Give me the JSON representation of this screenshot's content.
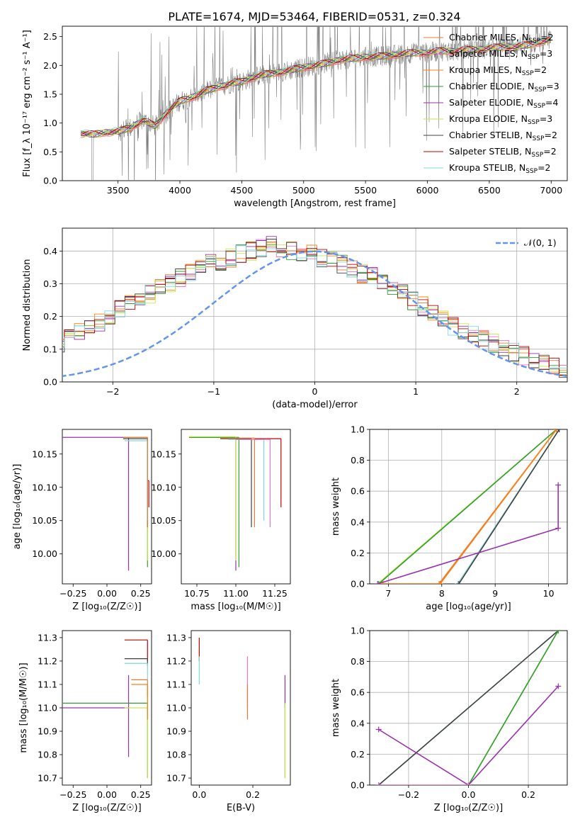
{
  "figure": {
    "title": "PLATE=1674, MJD=53464, FIBERID=0531, z=0.324"
  },
  "colors": {
    "data": "#808080",
    "grid": "#b0b0b0",
    "gaussian": "#6495ed"
  },
  "models": [
    {
      "name": "Chabrier MILES",
      "nssp": "2",
      "color": "#e8793a"
    },
    {
      "name": "Salpeter MILES",
      "nssp": "3",
      "color": "#e377c2"
    },
    {
      "name": "Kroupa MILES",
      "nssp": "2",
      "color": "#ff7f0e"
    },
    {
      "name": "Chabrier ELODIE",
      "nssp": "3",
      "color": "#2ca02c"
    },
    {
      "name": "Salpeter ELODIE",
      "nssp": "4",
      "color": "#9b30b0"
    },
    {
      "name": "Kroupa ELODIE",
      "nssp": "3",
      "color": "#c8e64a"
    },
    {
      "name": "Chabrier STELIB",
      "nssp": "2",
      "color": "#404040"
    },
    {
      "name": "Salpeter STELIB",
      "nssp": "2",
      "color": "#c00000"
    },
    {
      "name": "Kroupa STELIB",
      "nssp": "2",
      "color": "#7fd8dc"
    }
  ],
  "chart_data": [
    {
      "id": "spectrum",
      "type": "line",
      "xlabel": "wavelength [Angstrom, rest frame]",
      "ylabel": "Flux [f_λ 10⁻¹⁷ erg cm⁻² s⁻¹ A⁻¹]",
      "xlim": [
        3050,
        7130
      ],
      "ylim": [
        0,
        2.68
      ],
      "xticks": [
        3500,
        4000,
        4500,
        5000,
        5500,
        6000,
        6500,
        7000
      ],
      "yticks": [
        0.0,
        0.5,
        1.0,
        1.5,
        2.0,
        2.5
      ],
      "legend": "right, inside",
      "continuum": {
        "x": [
          3200,
          3300,
          3400,
          3500,
          3600,
          3700,
          3800,
          3900,
          4000,
          4100,
          4200,
          4300,
          4400,
          4500,
          4600,
          4700,
          4800,
          4900,
          5000,
          5100,
          5200,
          5300,
          5400,
          5500,
          5600,
          5700,
          5800,
          5900,
          6000,
          6100,
          6200,
          6300,
          6400,
          6500,
          6600,
          6700,
          6800,
          6900,
          7000
        ],
        "y": [
          0.82,
          0.8,
          0.84,
          0.85,
          0.92,
          1.05,
          0.95,
          1.2,
          1.38,
          1.45,
          1.55,
          1.62,
          1.68,
          1.72,
          1.8,
          1.85,
          1.88,
          1.92,
          1.97,
          2.0,
          2.05,
          2.1,
          2.12,
          2.15,
          2.15,
          2.18,
          2.2,
          2.22,
          2.22,
          2.25,
          2.25,
          2.27,
          2.28,
          2.3,
          2.32,
          2.33,
          2.35,
          2.4,
          2.45
        ]
      },
      "series": [
        "Chabrier MILES",
        "Salpeter MILES",
        "Kroupa MILES",
        "Chabrier ELODIE",
        "Salpeter ELODIE",
        "Kroupa ELODIE",
        "Chabrier STELIB",
        "Salpeter STELIB",
        "Kroupa STELIB"
      ]
    },
    {
      "id": "residuals",
      "type": "line",
      "xlabel": "(data-model)/error",
      "ylabel": "Normed distribution",
      "xlim": [
        -2.5,
        2.5
      ],
      "ylim": [
        0,
        0.47
      ],
      "xticks": [
        -2,
        -1,
        0,
        1,
        2
      ],
      "yticks": [
        0.0,
        0.1,
        0.2,
        0.3,
        0.4
      ],
      "legend_label": "𝒩(0, 1)",
      "legend": "top-right",
      "bin_width": 0.1,
      "base_hist": [
        0.02,
        0.03,
        0.04,
        0.04,
        0.05,
        0.06,
        0.07,
        0.09,
        0.1,
        0.12,
        0.13,
        0.15,
        0.17,
        0.18,
        0.2,
        0.22,
        0.24,
        0.26,
        0.27,
        0.29,
        0.3,
        0.32,
        0.33,
        0.35,
        0.36,
        0.37,
        0.38,
        0.39,
        0.4,
        0.41,
        0.42,
        0.41,
        0.4,
        0.4,
        0.39,
        0.38,
        0.37,
        0.36,
        0.35,
        0.33,
        0.32,
        0.3,
        0.28,
        0.27,
        0.25,
        0.23,
        0.21,
        0.19,
        0.17,
        0.16,
        0.15,
        0.13,
        0.12,
        0.1,
        0.09,
        0.08,
        0.07,
        0.06,
        0.05,
        0.04,
        0.04,
        0.03,
        0.03,
        0.04,
        0.03,
        0.03,
        0.03,
        0.03,
        0.04,
        0.04
      ]
    },
    {
      "id": "age-vs-Z",
      "type": "scatter",
      "xlabel": "Z [log₁₀(Z/Z☉)]",
      "ylabel": "age  [log₁₀(age/yr)]",
      "xlim": [
        -0.33,
        0.33
      ],
      "ylim": [
        9.955,
        10.187
      ],
      "xticks": [
        -0.25,
        0.0,
        0.25
      ],
      "yticks": [
        10.0,
        10.05,
        10.1,
        10.15
      ],
      "points": [
        {
          "model": "Salpeter ELODIE",
          "x": 0.16,
          "y": 10.175,
          "xlo": -0.33,
          "xhi": 0.16,
          "ylo": 9.975,
          "yhi": 10.175
        },
        {
          "model": "Chabrier ELODIE",
          "x": 0.3,
          "y": 10.175,
          "xlo": 0.12,
          "xhi": 0.3,
          "ylo": 9.98,
          "yhi": 10.175
        },
        {
          "model": "Kroupa ELODIE",
          "x": 0.3,
          "y": 10.175,
          "xlo": 0.13,
          "xhi": 0.3,
          "ylo": 9.99,
          "yhi": 10.175
        },
        {
          "model": "Chabrier STELIB",
          "x": 0.3,
          "y": 10.173,
          "xlo": 0.12,
          "xhi": 0.3,
          "ylo": 10.04,
          "yhi": 10.173
        },
        {
          "model": "Salpeter STELIB",
          "x": 0.31,
          "y": 10.11,
          "xlo": 0.3,
          "xhi": 0.31,
          "ylo": 10.07,
          "yhi": 10.11
        },
        {
          "model": "Kroupa STELIB",
          "x": 0.3,
          "y": 10.17,
          "xlo": 0.13,
          "xhi": 0.3,
          "ylo": 10.05,
          "yhi": 10.17
        },
        {
          "model": "Chabrier MILES",
          "x": 0.3,
          "y": 10.175,
          "xlo": 0.12,
          "xhi": 0.3,
          "ylo": 10.04,
          "yhi": 10.175
        }
      ]
    },
    {
      "id": "age-vs-mass",
      "type": "scatter",
      "xlabel": "mass [log₁₀(M/M☉)]",
      "ylabel": "",
      "xlim": [
        10.65,
        11.35
      ],
      "ylim": [
        9.955,
        10.187
      ],
      "xticks": [
        10.75,
        11.0,
        11.25
      ],
      "yticks": [
        10.0,
        10.05,
        10.1,
        10.15
      ],
      "points": [
        {
          "model": "Salpeter ELODIE",
          "x": 11.0,
          "y": 10.175,
          "xlo": 10.7,
          "xhi": 11.0,
          "ylo": 9.975,
          "yhi": 10.175
        },
        {
          "model": "Chabrier ELODIE",
          "x": 11.02,
          "y": 10.175,
          "xlo": 10.7,
          "xhi": 11.02,
          "ylo": 9.98,
          "yhi": 10.175
        },
        {
          "model": "Kroupa ELODIE",
          "x": 11.0,
          "y": 10.176,
          "xlo": 10.7,
          "xhi": 11.0,
          "ylo": 9.99,
          "yhi": 10.176
        },
        {
          "model": "Chabrier STELIB",
          "x": 11.1,
          "y": 10.173,
          "xlo": 10.9,
          "xhi": 11.1,
          "ylo": 10.04,
          "yhi": 10.173
        },
        {
          "model": "Salpeter STELIB",
          "x": 11.29,
          "y": 10.173,
          "xlo": 11.12,
          "xhi": 11.29,
          "ylo": 10.07,
          "yhi": 10.173
        },
        {
          "model": "Kroupa STELIB",
          "x": 11.18,
          "y": 10.172,
          "xlo": 10.95,
          "xhi": 11.18,
          "ylo": 10.05,
          "yhi": 10.172
        },
        {
          "model": "Salpeter MILES",
          "x": 11.22,
          "y": 10.172,
          "xlo": 11.0,
          "xhi": 11.22,
          "ylo": 10.04,
          "yhi": 10.172
        },
        {
          "model": "Chabrier MILES",
          "x": 11.12,
          "y": 10.174,
          "xlo": 10.9,
          "xhi": 11.12,
          "ylo": 10.04,
          "yhi": 10.174
        }
      ]
    },
    {
      "id": "weight-vs-age",
      "type": "line",
      "xlabel": "age  [log₁₀(age/yr)]",
      "ylabel": "mass weight",
      "xlim": [
        6.65,
        10.35
      ],
      "ylim": [
        0,
        1
      ],
      "xticks": [
        7,
        8,
        9,
        10
      ],
      "yticks": [
        0.0,
        0.2,
        0.4,
        0.6,
        0.8,
        1.0
      ],
      "series": [
        {
          "model": "Kroupa ELODIE",
          "x": [
            6.8,
            10.15
          ],
          "y": [
            0.0,
            1.0
          ]
        },
        {
          "model": "Chabrier ELODIE",
          "x": [
            6.82,
            10.15
          ],
          "y": [
            0.0,
            1.0
          ]
        },
        {
          "model": "Chabrier MILES",
          "x": [
            6.9,
            7.95,
            10.15
          ],
          "y": [
            0.0,
            0.0,
            1.0
          ]
        },
        {
          "model": "Kroupa MILES",
          "x": [
            6.9,
            7.97,
            10.15
          ],
          "y": [
            0.0,
            0.0,
            1.0
          ]
        },
        {
          "model": "Kroupa STELIB",
          "x": [
            8.3,
            10.2
          ],
          "y": [
            0.0,
            1.0
          ]
        },
        {
          "model": "Chabrier STELIB",
          "x": [
            8.32,
            10.2
          ],
          "y": [
            0.0,
            1.0
          ]
        },
        {
          "model": "Salpeter ELODIE",
          "x": [
            6.8,
            10.18,
            10.18
          ],
          "y": [
            0.0,
            0.36,
            0.64
          ]
        }
      ]
    },
    {
      "id": "mass-vs-Z",
      "type": "scatter",
      "xlabel": "Z [log₁₀(Z/Z☉)]",
      "ylabel": "mass [log₁₀(M/M☉)]",
      "xlim": [
        -0.33,
        0.33
      ],
      "ylim": [
        10.67,
        11.33
      ],
      "xticks": [
        -0.25,
        0.0,
        0.25
      ],
      "yticks": [
        10.7,
        10.8,
        10.9,
        11.0,
        11.1,
        11.2,
        11.3
      ],
      "points": [
        {
          "model": "Salpeter ELODIE",
          "x": 0.16,
          "y": 11.0,
          "xlo": -0.33,
          "xhi": 0.16,
          "ylo": 10.79,
          "yhi": 11.14
        },
        {
          "model": "Chabrier ELODIE",
          "x": 0.3,
          "y": 11.02,
          "xlo": -0.33,
          "xhi": 0.3,
          "ylo": 10.7,
          "yhi": 11.02
        },
        {
          "model": "Kroupa ELODIE",
          "x": 0.3,
          "y": 11.0,
          "xlo": 0.13,
          "xhi": 0.3,
          "ylo": 10.7,
          "yhi": 11.1
        },
        {
          "model": "Salpeter STELIB",
          "x": 0.3,
          "y": 11.29,
          "xlo": 0.13,
          "xhi": 0.3,
          "ylo": 11.2,
          "yhi": 11.29
        },
        {
          "model": "Chabrier STELIB",
          "x": 0.3,
          "y": 11.21,
          "xlo": 0.13,
          "xhi": 0.3,
          "ylo": 11.18,
          "yhi": 11.21
        },
        {
          "model": "Kroupa STELIB",
          "x": 0.3,
          "y": 11.19,
          "xlo": 0.13,
          "xhi": 0.3,
          "ylo": 11.12,
          "yhi": 11.19
        },
        {
          "model": "Chabrier MILES",
          "x": 0.3,
          "y": 11.12,
          "xlo": 0.18,
          "xhi": 0.3,
          "ylo": 11.05,
          "yhi": 11.12
        },
        {
          "model": "Kroupa MILES",
          "x": 0.3,
          "y": 11.1,
          "xlo": 0.18,
          "xhi": 0.3,
          "ylo": 10.95,
          "yhi": 11.1
        }
      ]
    },
    {
      "id": "mass-vs-EBV",
      "type": "scatter",
      "xlabel": "E(B-V)",
      "ylabel": "",
      "xlim": [
        -0.03,
        0.34
      ],
      "ylim": [
        10.67,
        11.33
      ],
      "xticks": [
        0.0,
        0.2
      ],
      "yticks": [
        10.7,
        10.8,
        10.9,
        11.0,
        11.1,
        11.2,
        11.3
      ],
      "points": [
        {
          "model": "Salpeter STELIB",
          "x": 0.0,
          "y": 11.25,
          "ylo": 11.2,
          "yhi": 11.3
        },
        {
          "model": "Kroupa STELIB",
          "x": 0.0,
          "y": 11.18,
          "ylo": 11.1,
          "yhi": 11.22
        },
        {
          "model": "Salpeter MILES",
          "x": 0.18,
          "y": 11.1,
          "ylo": 11.0,
          "yhi": 11.22
        },
        {
          "model": "Chabrier MILES",
          "x": 0.18,
          "y": 11.02,
          "ylo": 10.95,
          "yhi": 11.1
        },
        {
          "model": "Salpeter ELODIE",
          "x": 0.32,
          "y": 11.04,
          "ylo": 11.0,
          "yhi": 11.14
        },
        {
          "model": "Chabrier ELODIE",
          "x": 0.32,
          "y": 10.9,
          "ylo": 10.7,
          "yhi": 11.02
        },
        {
          "model": "Kroupa ELODIE",
          "x": 0.32,
          "y": 10.9,
          "ylo": 10.7,
          "yhi": 11.02
        }
      ]
    },
    {
      "id": "weight-vs-Z",
      "type": "line",
      "xlabel": "Z [log₁₀(Z/Z☉)]",
      "ylabel": "mass weight",
      "xlim": [
        -0.33,
        0.33
      ],
      "ylim": [
        0,
        1
      ],
      "xticks": [
        -0.2,
        0.0,
        0.2
      ],
      "yticks": [
        0.0,
        0.2,
        0.4,
        0.6,
        0.8,
        1.0
      ],
      "series": [
        {
          "model": "Kroupa STELIB",
          "x": [
            -0.3,
            0.3
          ],
          "y": [
            0.0,
            1.0
          ]
        },
        {
          "model": "Chabrier STELIB",
          "x": [
            -0.3,
            0.3
          ],
          "y": [
            0.0,
            1.0
          ]
        },
        {
          "model": "Kroupa ELODIE",
          "x": [
            0.0,
            0.3
          ],
          "y": [
            0.0,
            1.0
          ]
        },
        {
          "model": "Chabrier ELODIE",
          "x": [
            0.0,
            0.3
          ],
          "y": [
            0.0,
            1.0
          ]
        },
        {
          "model": "Salpeter ELODIE",
          "x": [
            -0.3,
            0.0,
            0.3
          ],
          "y": [
            0.36,
            0.0,
            0.64
          ]
        },
        {
          "model": "Salpeter MILES",
          "x": [
            -0.3,
            0.0
          ],
          "y": [
            0.0,
            0.0
          ]
        }
      ]
    }
  ]
}
